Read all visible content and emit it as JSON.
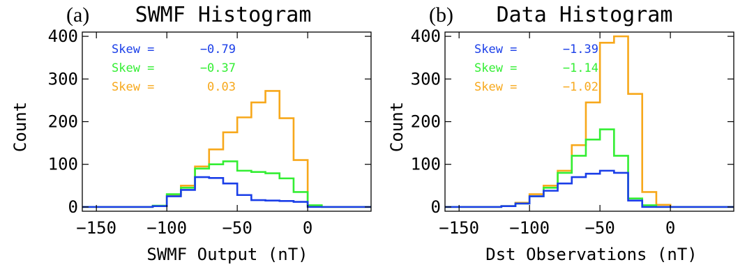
{
  "chart_data": [
    {
      "type": "histogram",
      "panel_label": "(a)",
      "title": "SWMF Histogram",
      "xlabel": "SWMF Output (nT)",
      "ylabel": "Count",
      "xlim": [
        -160,
        45
      ],
      "ylim": [
        -10,
        410
      ],
      "xticks": [
        -150,
        -100,
        -50,
        0
      ],
      "xtick_labels": [
        "−150",
        "−100",
        "−50",
        "0"
      ],
      "yticks": [
        0,
        100,
        200,
        300,
        400
      ],
      "ytick_labels": [
        "0",
        "100",
        "200",
        "300",
        "400"
      ],
      "bin_edges": [
        -160,
        -150,
        -140,
        -130,
        -120,
        -110,
        -100,
        -90,
        -80,
        -70,
        -60,
        -50,
        -40,
        -30,
        -20,
        -10,
        0,
        10,
        20,
        30,
        40,
        45
      ],
      "series": [
        {
          "color": "#f7a81b",
          "values": [
            0,
            0,
            0,
            0,
            0,
            2,
            28,
            50,
            95,
            135,
            175,
            210,
            245,
            272,
            208,
            110,
            2,
            0,
            0,
            0,
            0
          ],
          "skew_label": "Skew =",
          "skew_value": "0.03"
        },
        {
          "color": "#33ee33",
          "values": [
            0,
            0,
            0,
            0,
            0,
            3,
            30,
            45,
            90,
            100,
            107,
            85,
            82,
            79,
            67,
            35,
            4,
            0,
            0,
            0,
            0
          ],
          "skew_label": "Skew =",
          "skew_value": "−0.37"
        },
        {
          "color": "#1a3ee8",
          "values": [
            0,
            0,
            0,
            0,
            0,
            2,
            25,
            40,
            70,
            68,
            55,
            28,
            16,
            15,
            14,
            12,
            0,
            0,
            0,
            0,
            0
          ],
          "skew_label": "Skew =",
          "skew_value": "−0.79"
        }
      ]
    },
    {
      "type": "histogram",
      "panel_label": "(b)",
      "title": "Data Histogram",
      "xlabel": "Dst Observations (nT)",
      "ylabel": "Count",
      "xlim": [
        -160,
        45
      ],
      "ylim": [
        -10,
        410
      ],
      "xticks": [
        -150,
        -100,
        -50,
        0
      ],
      "xtick_labels": [
        "−150",
        "−100",
        "−50",
        "0"
      ],
      "yticks": [
        0,
        100,
        200,
        300,
        400
      ],
      "ytick_labels": [
        "0",
        "100",
        "200",
        "300",
        "400"
      ],
      "bin_edges": [
        -160,
        -150,
        -140,
        -130,
        -120,
        -110,
        -100,
        -90,
        -80,
        -70,
        -60,
        -50,
        -40,
        -30,
        -20,
        -10,
        0,
        10,
        20,
        30,
        40,
        45
      ],
      "series": [
        {
          "color": "#f7a81b",
          "values": [
            0,
            0,
            0,
            0,
            2,
            10,
            30,
            50,
            85,
            145,
            245,
            385,
            400,
            265,
            35,
            5,
            0,
            0,
            0,
            0,
            0
          ],
          "skew_label": "Skew =",
          "skew_value": "−1.02"
        },
        {
          "color": "#33ee33",
          "values": [
            0,
            0,
            0,
            0,
            2,
            8,
            25,
            45,
            80,
            120,
            158,
            182,
            120,
            20,
            4,
            0,
            0,
            0,
            0,
            0,
            0
          ],
          "skew_label": "Skew =",
          "skew_value": "−1.14"
        },
        {
          "color": "#1a3ee8",
          "values": [
            0,
            0,
            0,
            0,
            2,
            8,
            25,
            38,
            55,
            70,
            78,
            85,
            80,
            15,
            0,
            0,
            0,
            0,
            0,
            0,
            0
          ],
          "skew_label": "Skew =",
          "skew_value": "−1.39"
        }
      ]
    }
  ]
}
